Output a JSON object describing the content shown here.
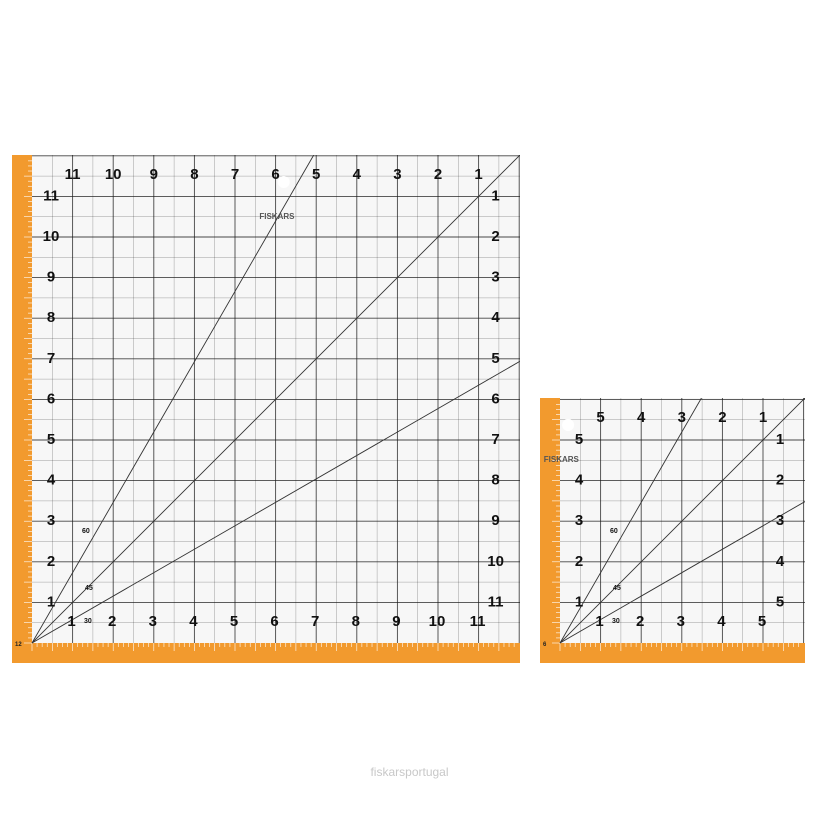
{
  "brand": "FISKARS",
  "watermark": "fiskarsportugal",
  "colors": {
    "orange": "#f29a2e",
    "grid": "#1a1a1a",
    "ruler_bg": "#f7f7f7"
  },
  "rulers": [
    {
      "name": "large-ruler",
      "size_in": 12.5,
      "top_numbers": [
        "11",
        "10",
        "9",
        "8",
        "7",
        "6",
        "5",
        "4",
        "3",
        "2",
        "1"
      ],
      "left_numbers": [
        "11",
        "10",
        "9",
        "8",
        "7",
        "6",
        "5",
        "4",
        "3",
        "2",
        "1"
      ],
      "right_numbers": [
        "1",
        "2",
        "3",
        "4",
        "5",
        "6",
        "7",
        "8",
        "9",
        "10",
        "11"
      ],
      "bottom_numbers": [
        "1",
        "2",
        "3",
        "4",
        "5",
        "6",
        "7",
        "8",
        "9",
        "10",
        "11"
      ],
      "angle_labels": [
        "60",
        "45",
        "30"
      ],
      "corner_label": "12"
    },
    {
      "name": "small-ruler",
      "size_in": 6.5,
      "top_numbers": [
        "5",
        "4",
        "3",
        "2",
        "1"
      ],
      "left_numbers": [
        "5",
        "4",
        "3",
        "2",
        "1"
      ],
      "right_numbers": [
        "1",
        "2",
        "3",
        "4",
        "5"
      ],
      "bottom_numbers": [
        "1",
        "2",
        "3",
        "4",
        "5"
      ],
      "angle_labels": [
        "60",
        "45",
        "30"
      ],
      "corner_label": "6"
    }
  ]
}
